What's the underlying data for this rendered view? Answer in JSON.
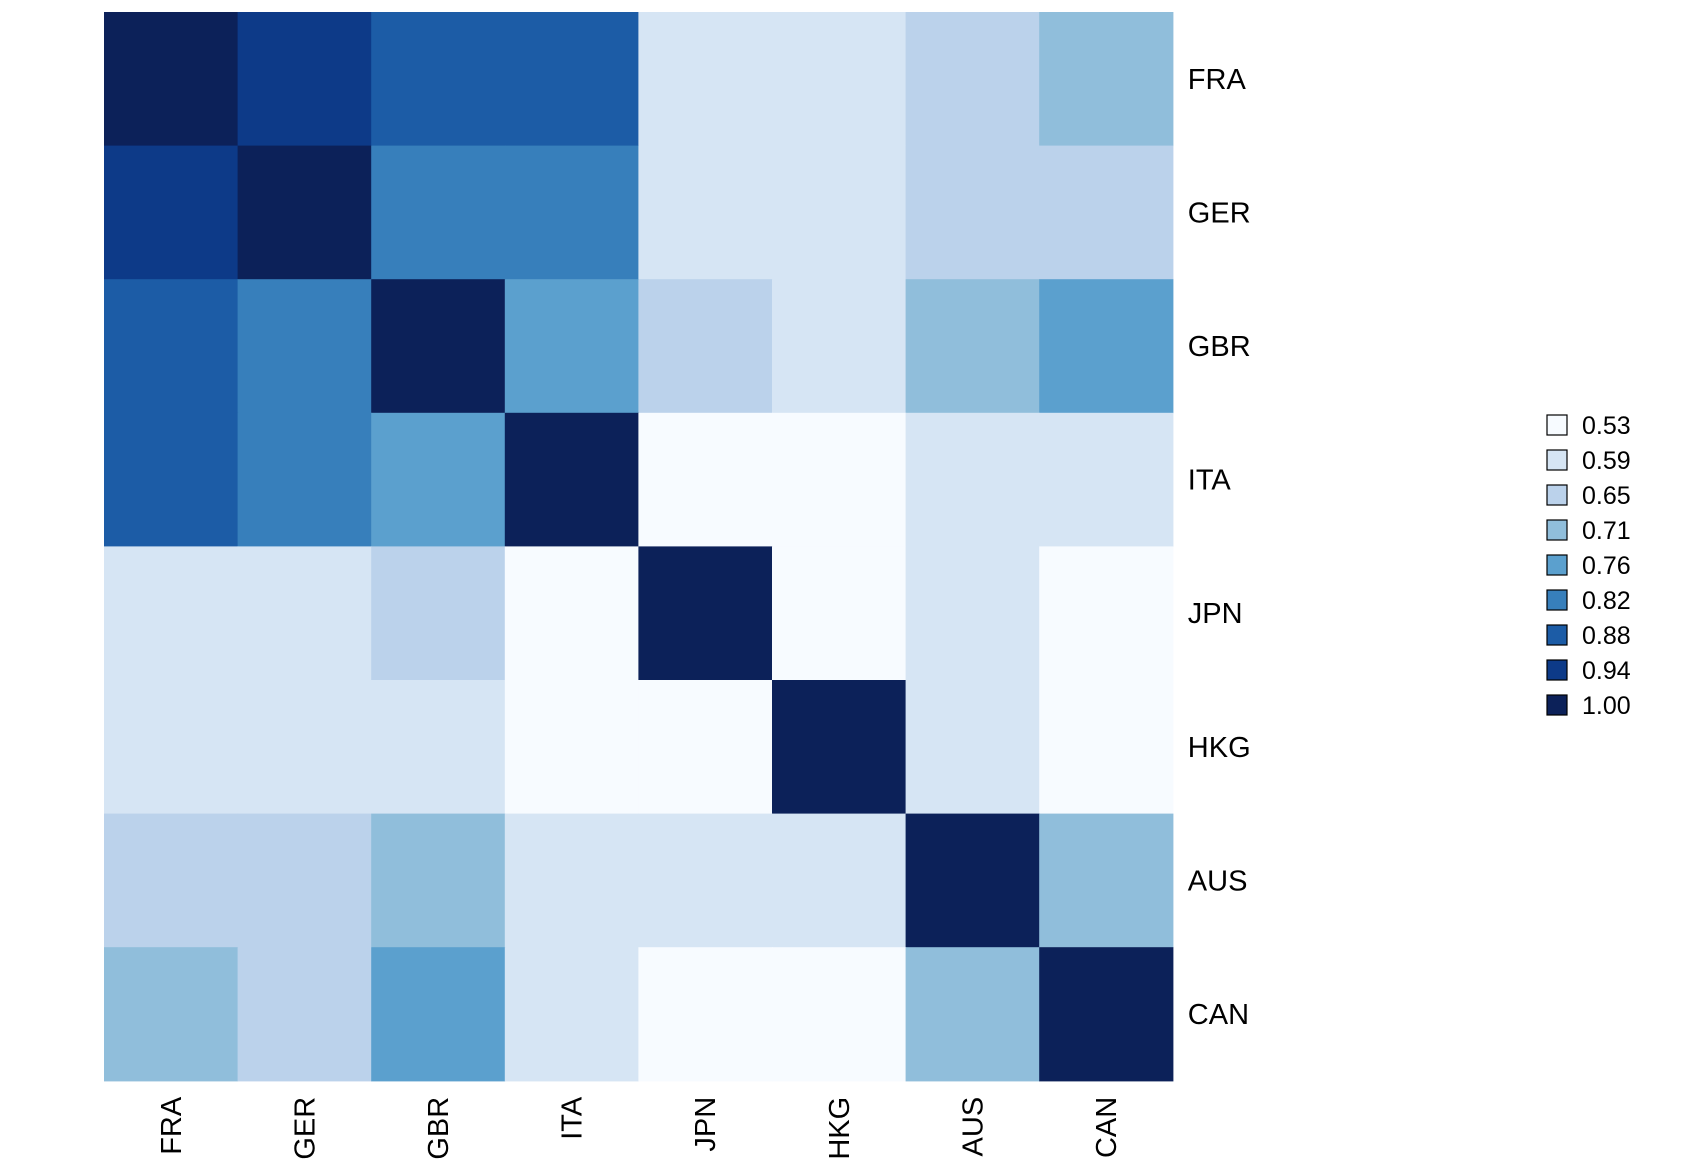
{
  "chart_data": {
    "type": "heatmap",
    "title": "",
    "xlabel": "",
    "ylabel": "",
    "rows": [
      "FRA",
      "GER",
      "GBR",
      "ITA",
      "JPN",
      "HKG",
      "AUS",
      "CAN"
    ],
    "columns": [
      "FRA",
      "GER",
      "GBR",
      "ITA",
      "JPN",
      "HKG",
      "AUS",
      "CAN"
    ],
    "values": [
      [
        1.0,
        0.94,
        0.88,
        0.88,
        0.59,
        0.59,
        0.65,
        0.71
      ],
      [
        0.94,
        1.0,
        0.82,
        0.82,
        0.59,
        0.59,
        0.65,
        0.65
      ],
      [
        0.88,
        0.82,
        1.0,
        0.76,
        0.65,
        0.59,
        0.71,
        0.76
      ],
      [
        0.88,
        0.82,
        0.76,
        1.0,
        0.53,
        0.53,
        0.59,
        0.59
      ],
      [
        0.59,
        0.59,
        0.65,
        0.53,
        1.0,
        0.53,
        0.59,
        0.53
      ],
      [
        0.59,
        0.59,
        0.59,
        0.53,
        0.53,
        1.0,
        0.59,
        0.53
      ],
      [
        0.65,
        0.65,
        0.71,
        0.59,
        0.59,
        0.59,
        1.0,
        0.71
      ],
      [
        0.71,
        0.65,
        0.76,
        0.59,
        0.53,
        0.53,
        0.71,
        1.0
      ]
    ],
    "grid": false,
    "legend_position": "right",
    "legend": {
      "labels": [
        "0.53",
        "0.59",
        "0.65",
        "0.71",
        "0.76",
        "0.82",
        "0.88",
        "0.94",
        "1.00"
      ],
      "levels": [
        0.53,
        0.59,
        0.65,
        0.71,
        0.76,
        0.82,
        0.88,
        0.94,
        1.0
      ],
      "colors": [
        "#F7FBFF",
        "#D6E5F4",
        "#BBD2EB",
        "#90BEDB",
        "#5BA0CE",
        "#377FBB",
        "#1C5CA6",
        "#0D3A88",
        "#0C2159"
      ]
    }
  }
}
